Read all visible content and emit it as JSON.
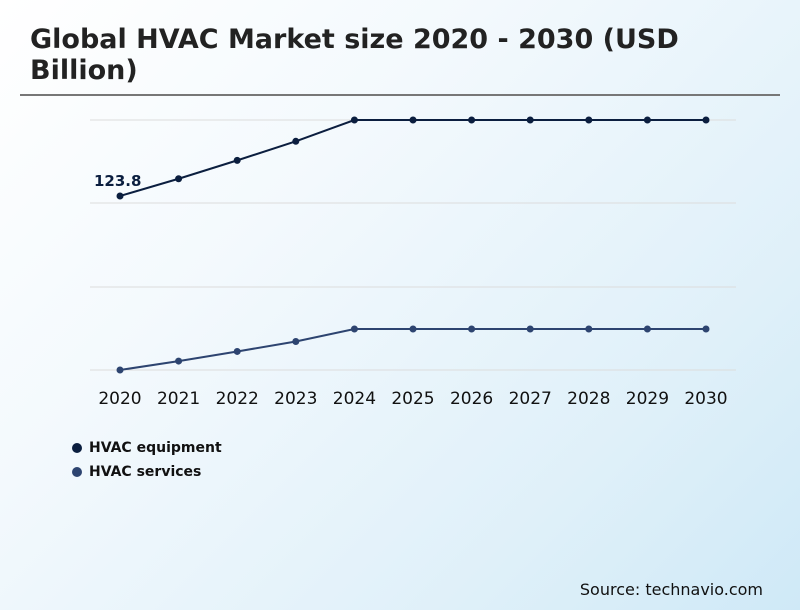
{
  "title": "Global HVAC Market size 2020 - 2030 (USD Billion)",
  "source": "Source: technavio.com",
  "colors": {
    "equipment": "#0b1e3f",
    "services": "#2d4470",
    "grid": "#dcdcdc",
    "axis_text": "#111111"
  },
  "legend": [
    {
      "label": "HVAC equipment",
      "color": "#0b1e3f"
    },
    {
      "label": "HVAC services",
      "color": "#2d4470"
    }
  ],
  "chart_data": {
    "type": "line",
    "title": "Global HVAC Market size 2020 - 2030 (USD Billion)",
    "xlabel": "",
    "ylabel": "",
    "x": [
      "2020",
      "2021",
      "2022",
      "2023",
      "2024",
      "2025",
      "2026",
      "2027",
      "2028",
      "2029",
      "2030"
    ],
    "series": [
      {
        "name": "HVAC equipment",
        "values": [
          123.8,
          128.5,
          133.5,
          138.7,
          144.5,
          144.5,
          144.5,
          144.5,
          144.5,
          144.5,
          144.5
        ]
      },
      {
        "name": "HVAC services",
        "values": [
          18.0,
          20.5,
          23.2,
          26.0,
          29.5,
          29.5,
          29.5,
          29.5,
          29.5,
          29.5,
          29.5
        ]
      }
    ],
    "data_labels": [
      {
        "series": "HVAC equipment",
        "x": "2020",
        "text": "123.8"
      }
    ],
    "ylim": [
      18,
      144.5
    ],
    "grid": true,
    "legend_position": "bottom-left"
  }
}
